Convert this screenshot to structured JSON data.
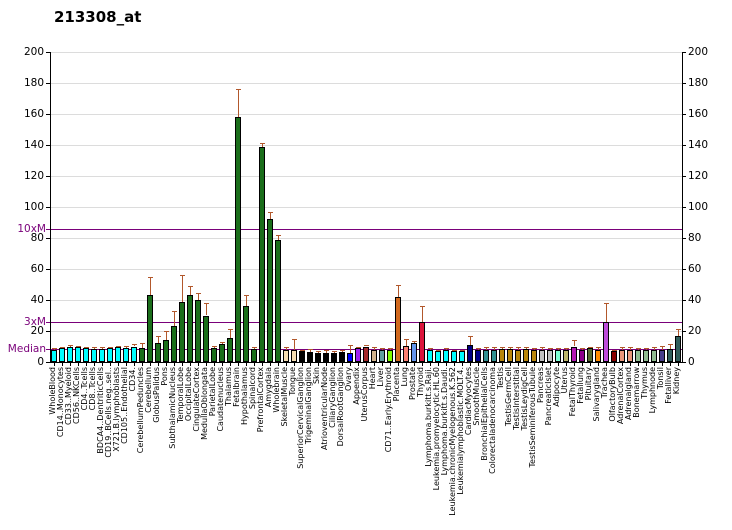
{
  "chart_data": {
    "type": "bar",
    "title": "213308_at",
    "xlabel": "",
    "ylabel": "",
    "ylim": [
      0,
      200
    ],
    "y_ticks": [
      0,
      20,
      40,
      60,
      80,
      100,
      120,
      140,
      160,
      180,
      200
    ],
    "grid": true,
    "axis_color": "#000000",
    "grid_color": "#dcdcdc",
    "error_bar_color": "#b2582c",
    "ref_lines": [
      {
        "label": "10xM",
        "value": 86,
        "color": "#7a007a"
      },
      {
        "label": "3xM",
        "value": 25.8,
        "color": "#7a007a"
      },
      {
        "label": "Median",
        "value": 8.6,
        "color": "#7a007a"
      }
    ],
    "series": [
      {
        "label": "WholeBlood",
        "value": 7.5,
        "err": 9,
        "color": "#00ffff"
      },
      {
        "label": "CD14..Monocytes",
        "value": 9,
        "err": 10,
        "color": "#00ffff"
      },
      {
        "label": "CD33..Myeloid",
        "value": 9.5,
        "err": 11,
        "color": "#00ffff"
      },
      {
        "label": "CD56..NKCells",
        "value": 9.5,
        "err": 10.5,
        "color": "#00ffff"
      },
      {
        "label": "CD4..Tcells",
        "value": 9,
        "err": 9.5,
        "color": "#00ffff"
      },
      {
        "label": "CD8..Tcells",
        "value": 8.5,
        "err": 10,
        "color": "#00ffff"
      },
      {
        "label": "BDCA4..DentriticCells",
        "value": 8.5,
        "err": 10,
        "color": "#00ffff"
      },
      {
        "label": "CD19..BCells.neg..sel..",
        "value": 9,
        "err": 10,
        "color": "#00ffff"
      },
      {
        "label": "X721.B.lymphoblasts",
        "value": 10,
        "err": 10.5,
        "color": "#00ffff"
      },
      {
        "label": "CD105..Endothelial",
        "value": 9,
        "err": 10.5,
        "color": "#00ffff"
      },
      {
        "label": "CD34.",
        "value": 10,
        "err": 11.5,
        "color": "#00ffff"
      },
      {
        "label": "CerebellumPeduncles",
        "value": 9,
        "err": 12.5,
        "color": "#1b6e1b"
      },
      {
        "label": "Cerebellum",
        "value": 43,
        "err": 55,
        "color": "#1b6e1b"
      },
      {
        "label": "GlobusPalidus",
        "value": 12.5,
        "err": 16.5,
        "color": "#1b6e1b"
      },
      {
        "label": "Pons",
        "value": 14,
        "err": 20,
        "color": "#1b6e1b"
      },
      {
        "label": "SubthalamicNucleus",
        "value": 23,
        "err": 33,
        "color": "#1b6e1b"
      },
      {
        "label": "TemporalLobe",
        "value": 39,
        "err": 56,
        "color": "#1b6e1b"
      },
      {
        "label": "OccipitalLobe",
        "value": 43,
        "err": 49,
        "color": "#1b6e1b"
      },
      {
        "label": "CingulateCortex",
        "value": 40,
        "err": 44.5,
        "color": "#1b6e1b"
      },
      {
        "label": "MedullaOblongata",
        "value": 30,
        "err": 38,
        "color": "#1b6e1b"
      },
      {
        "label": "ParietalLobe",
        "value": 9,
        "err": 10.5,
        "color": "#1b6e1b"
      },
      {
        "label": "Caudatenucleus",
        "value": 11.5,
        "err": 13,
        "color": "#1b6e1b"
      },
      {
        "label": "Thalamus",
        "value": 15.5,
        "err": 21,
        "color": "#1b6e1b"
      },
      {
        "label": "Fetalbrain",
        "value": 158,
        "err": 176,
        "color": "#1b6e1b"
      },
      {
        "label": "Hypothalamus",
        "value": 36,
        "err": 43,
        "color": "#1b6e1b"
      },
      {
        "label": "Spinalcord",
        "value": 8.5,
        "err": 10,
        "color": "#1b6e1b"
      },
      {
        "label": "PrefrontalCortex",
        "value": 139,
        "err": 141.5,
        "color": "#1b6e1b"
      },
      {
        "label": "Amygdala",
        "value": 92,
        "err": 97,
        "color": "#1b6e1b"
      },
      {
        "label": "Wholebrain",
        "value": 79,
        "err": 82,
        "color": "#1b6e1b"
      },
      {
        "label": "SkeletalMuscle",
        "value": 8,
        "err": 10,
        "color": "#f5deb3"
      },
      {
        "label": "Tongue",
        "value": 8,
        "err": 15,
        "color": "#f5deb3"
      },
      {
        "label": "SuperiorCervicalGanglion",
        "value": 7,
        "err": 8,
        "color": "#000000"
      },
      {
        "label": "TrigeminalGanglion",
        "value": 6.5,
        "err": 8.5,
        "color": "#000000"
      },
      {
        "label": "Skin",
        "value": 6,
        "err": 7,
        "color": "#000000"
      },
      {
        "label": "AtrioventricularNode",
        "value": 6,
        "err": 7.5,
        "color": "#000000"
      },
      {
        "label": "CiliaryGanglion",
        "value": 6,
        "err": 7,
        "color": "#000000"
      },
      {
        "label": "DorsalRootGanglion",
        "value": 6.5,
        "err": 7.5,
        "color": "#000000"
      },
      {
        "label": "Ovary",
        "value": 6,
        "err": 11,
        "color": "#0000ff"
      },
      {
        "label": "Appendix",
        "value": 9,
        "err": 10,
        "color": "#a020f0"
      },
      {
        "label": "UterusCorpus",
        "value": 10,
        "err": 11,
        "color": "#a52a2a"
      },
      {
        "label": "Heart",
        "value": 8,
        "err": 9.5,
        "color": "#d2b48c"
      },
      {
        "label": "Liver",
        "value": 8,
        "err": 9,
        "color": "#5f9ea0"
      },
      {
        "label": "CD71..Early.Erythroid",
        "value": 8,
        "err": 9,
        "color": "#7cfc00"
      },
      {
        "label": "Placenta",
        "value": 42,
        "err": 50,
        "color": "#d2691e"
      },
      {
        "label": "Lung",
        "value": 10.5,
        "err": 15,
        "color": "#fa8072"
      },
      {
        "label": "Prostate",
        "value": 12.5,
        "err": 13.5,
        "color": "#6495ed"
      },
      {
        "label": "Thyroid",
        "value": 26,
        "err": 36,
        "color": "#dc143c"
      },
      {
        "label": "Lymphoma.burkitt.s.Raji.",
        "value": 7.5,
        "err": 9,
        "color": "#00ffff"
      },
      {
        "label": "Leukemia.promyelocytic.HL.60",
        "value": 7,
        "err": 8,
        "color": "#00ffff"
      },
      {
        "label": "Lymphoma.burkitt.s.Daudi.",
        "value": 8,
        "err": 9,
        "color": "#00ffff"
      },
      {
        "label": "Leukemia.chronicMyelogenous.K.562",
        "value": 7,
        "err": 8,
        "color": "#00ffff"
      },
      {
        "label": "Leukemialymphoblastic.MOLT.4.",
        "value": 7,
        "err": 8,
        "color": "#00ffff"
      },
      {
        "label": "CardiacMyocytes",
        "value": 11,
        "err": 17,
        "color": "#000080"
      },
      {
        "label": "SmoothMuscle",
        "value": 8,
        "err": 9,
        "color": "#00008b"
      },
      {
        "label": "BronchialEpithelialCells",
        "value": 8,
        "err": 9.5,
        "color": "#2f8f8f"
      },
      {
        "label": "Colorectaladenocarcinoma",
        "value": 8,
        "err": 9.5,
        "color": "#2f8f8f"
      },
      {
        "label": "Testis",
        "value": 8.5,
        "err": 9.5,
        "color": "#b8860b"
      },
      {
        "label": "TestisGermCell",
        "value": 8.5,
        "err": 9.5,
        "color": "#b8860b"
      },
      {
        "label": "TestisInterstitial",
        "value": 7.5,
        "err": 9.5,
        "color": "#b8860b"
      },
      {
        "label": "TestisLeydigCell",
        "value": 8.5,
        "err": 10,
        "color": "#b8860b"
      },
      {
        "label": "TestisSeminiferousTubule",
        "value": 7.5,
        "err": 9,
        "color": "#b8860b"
      },
      {
        "label": "Pancreas",
        "value": 8,
        "err": 10,
        "color": "#c0c0c0"
      },
      {
        "label": "PancreaticIslet",
        "value": 8,
        "err": 9,
        "color": "#c0c0c0"
      },
      {
        "label": "Adipocyte",
        "value": 8,
        "err": 9,
        "color": "#7fffd4"
      },
      {
        "label": "Uterus",
        "value": 8,
        "err": 9,
        "color": "#bdb76b"
      },
      {
        "label": "FetalThyroid",
        "value": 10,
        "err": 14.5,
        "color": "#b118b1"
      },
      {
        "label": "Fetallung",
        "value": 8,
        "err": 9,
        "color": "#8b008b"
      },
      {
        "label": "Pituitary",
        "value": 9,
        "err": 9.5,
        "color": "#556b2f"
      },
      {
        "label": "Salivarygland",
        "value": 8,
        "err": 9.5,
        "color": "#ff8c00"
      },
      {
        "label": "Trachea",
        "value": 25.5,
        "err": 38,
        "color": "#be4bdb"
      },
      {
        "label": "OlfactoryBulb",
        "value": 7,
        "err": 8,
        "color": "#8b0000"
      },
      {
        "label": "AdrenalCortex",
        "value": 8,
        "err": 9.5,
        "color": "#e9967a"
      },
      {
        "label": "Adrenalgland",
        "value": 8,
        "err": 9.5,
        "color": "#e9967a"
      },
      {
        "label": "Bonemarrow",
        "value": 7.5,
        "err": 9,
        "color": "#8fbc8f"
      },
      {
        "label": "Thymus",
        "value": 8,
        "err": 9,
        "color": "#8fbc8f"
      },
      {
        "label": "Lymphnode",
        "value": 8,
        "err": 9.5,
        "color": "#8fbc8f"
      },
      {
        "label": "Tonsil",
        "value": 7.5,
        "err": 10.5,
        "color": "#483d8b"
      },
      {
        "label": "Fetalliver",
        "value": 8.5,
        "err": 11.5,
        "color": "#2f5d5a"
      },
      {
        "label": "Kidney",
        "value": 17,
        "err": 21.5,
        "color": "#2f5d5a"
      }
    ]
  }
}
